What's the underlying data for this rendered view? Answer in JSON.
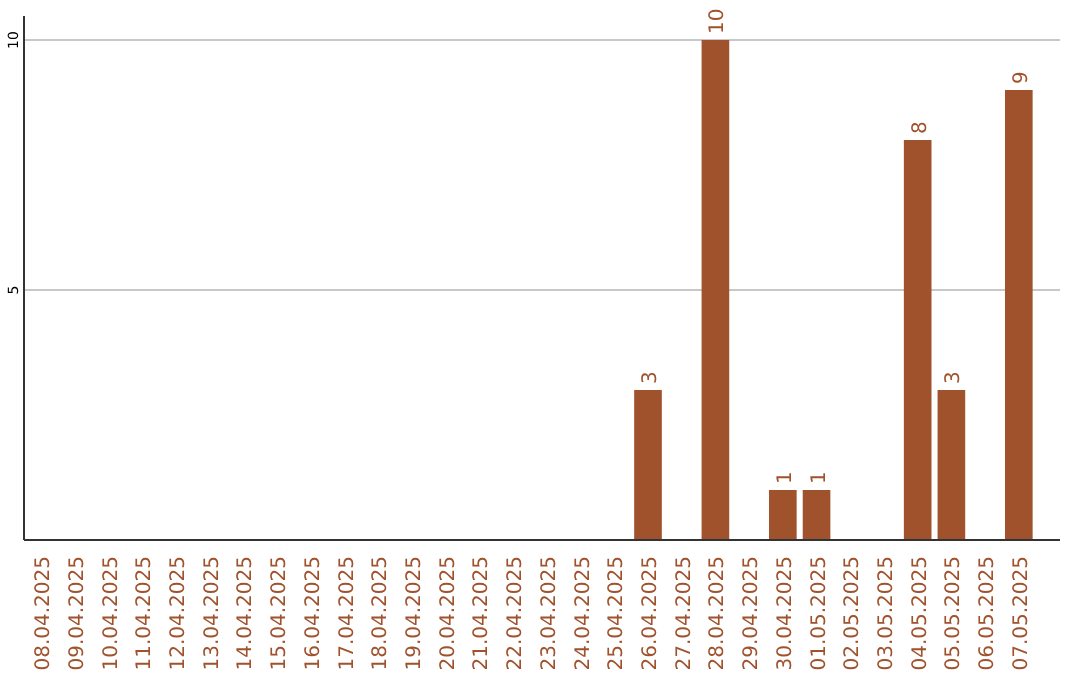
{
  "chart_data": {
    "type": "bar",
    "categories": [
      "08.04.2025",
      "09.04.2025",
      "10.04.2025",
      "11.04.2025",
      "12.04.2025",
      "13.04.2025",
      "14.04.2025",
      "15.04.2025",
      "16.04.2025",
      "17.04.2025",
      "18.04.2025",
      "19.04.2025",
      "20.04.2025",
      "21.04.2025",
      "22.04.2025",
      "23.04.2025",
      "24.04.2025",
      "25.04.2025",
      "26.04.2025",
      "27.04.2025",
      "28.04.2025",
      "29.04.2025",
      "30.04.2025",
      "01.05.2025",
      "02.05.2025",
      "03.05.2025",
      "04.05.2025",
      "05.05.2025",
      "06.05.2025",
      "07.05.2025"
    ],
    "values": [
      0,
      0,
      0,
      0,
      0,
      0,
      0,
      0,
      0,
      0,
      0,
      0,
      0,
      0,
      0,
      0,
      0,
      0,
      3,
      0,
      10,
      0,
      1,
      1,
      0,
      0,
      8,
      3,
      0,
      9
    ],
    "value_labels": [
      null,
      null,
      null,
      null,
      null,
      null,
      null,
      null,
      null,
      null,
      null,
      null,
      null,
      null,
      null,
      null,
      null,
      null,
      "3",
      null,
      "10",
      null,
      "1",
      "1",
      null,
      null,
      "8",
      "3",
      null,
      "9"
    ],
    "color": "#a0522d",
    "ylim": [
      0,
      10
    ],
    "yticks": [
      5,
      10
    ],
    "grid": "y"
  }
}
